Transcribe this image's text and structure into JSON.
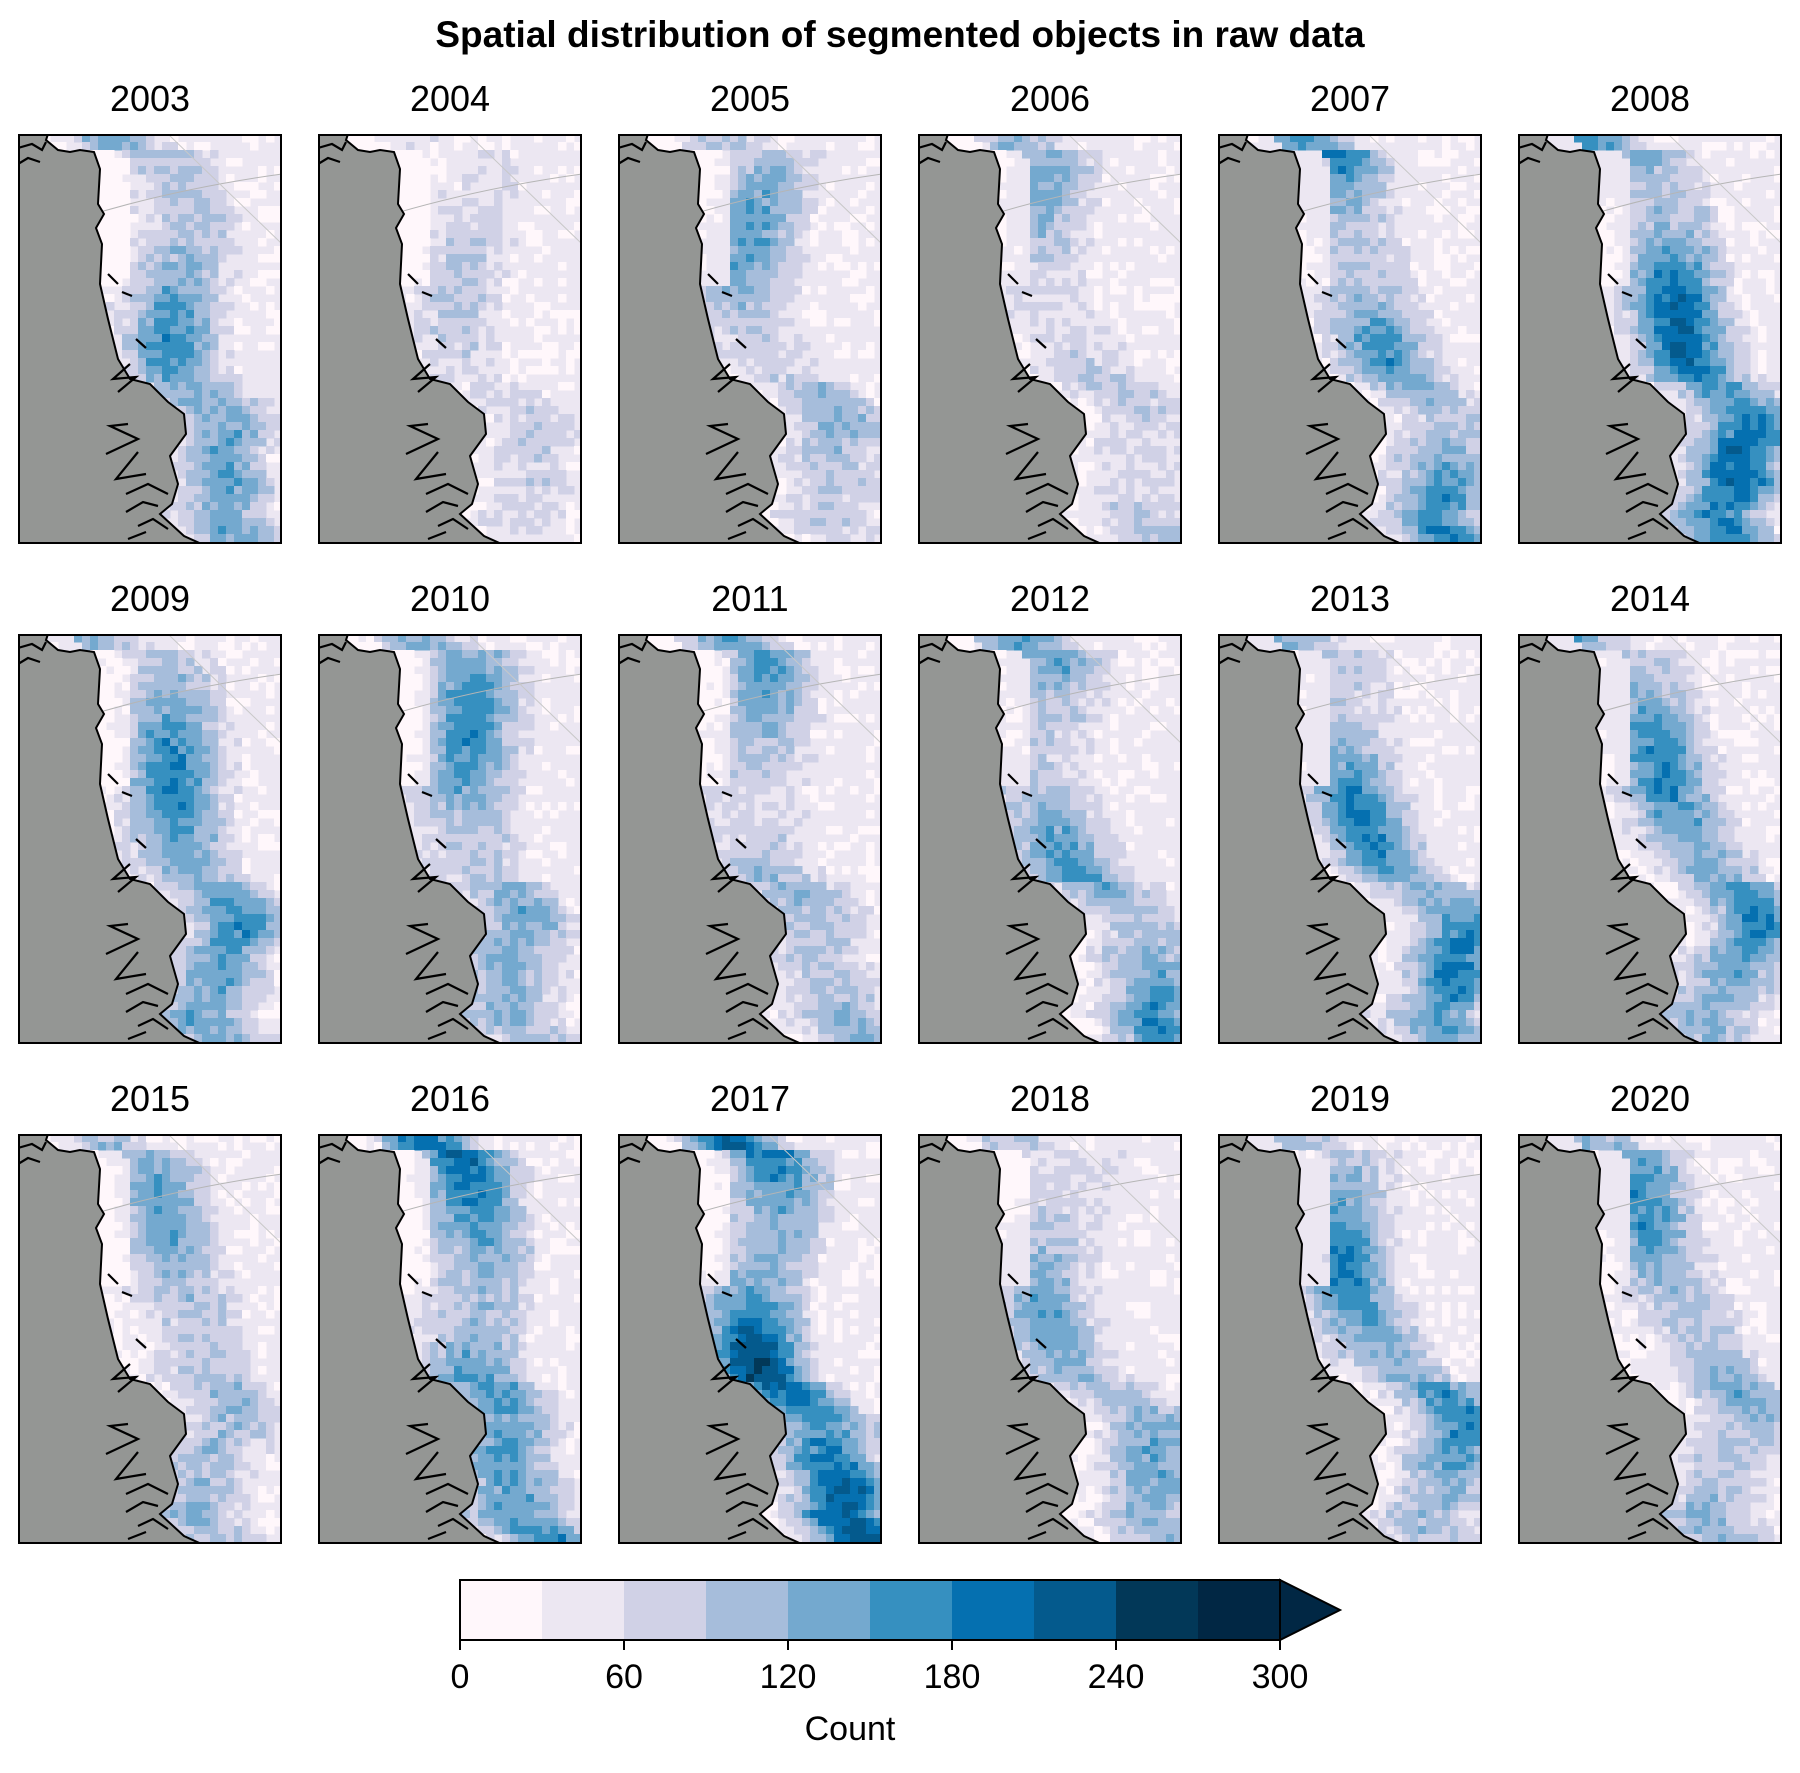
{
  "chart_data": {
    "type": "heatmap",
    "title": "Spatial distribution of segmented objects in raw data",
    "panels": [
      {
        "year": "2003",
        "intensity": 0.62
      },
      {
        "year": "2004",
        "intensity": 0.3
      },
      {
        "year": "2005",
        "intensity": 0.52
      },
      {
        "year": "2006",
        "intensity": 0.45
      },
      {
        "year": "2007",
        "intensity": 0.72
      },
      {
        "year": "2008",
        "intensity": 0.85
      },
      {
        "year": "2009",
        "intensity": 0.68
      },
      {
        "year": "2010",
        "intensity": 0.64
      },
      {
        "year": "2011",
        "intensity": 0.55
      },
      {
        "year": "2012",
        "intensity": 0.62
      },
      {
        "year": "2013",
        "intensity": 0.66
      },
      {
        "year": "2014",
        "intensity": 0.63
      },
      {
        "year": "2015",
        "intensity": 0.52
      },
      {
        "year": "2016",
        "intensity": 0.75
      },
      {
        "year": "2017",
        "intensity": 0.88
      },
      {
        "year": "2018",
        "intensity": 0.5
      },
      {
        "year": "2019",
        "intensity": 0.64
      },
      {
        "year": "2020",
        "intensity": 0.58
      }
    ],
    "colorbar": {
      "label": "Count",
      "ticks": [
        "0",
        "60",
        "120",
        "180",
        "240",
        "300"
      ],
      "min": 0,
      "max": 300,
      "levels": [
        0,
        30,
        60,
        90,
        120,
        150,
        180,
        210,
        240,
        270,
        300
      ],
      "extend": "max",
      "colors": [
        "#fff7fb",
        "#ece7f2",
        "#d0d1e6",
        "#a6bddb",
        "#74a9cf",
        "#3690c0",
        "#0570b0",
        "#045a8d",
        "#023858",
        "#012744"
      ],
      "over_color": "#012744"
    },
    "land_color": "#949694",
    "coast_color": "#000000",
    "grid": false
  }
}
